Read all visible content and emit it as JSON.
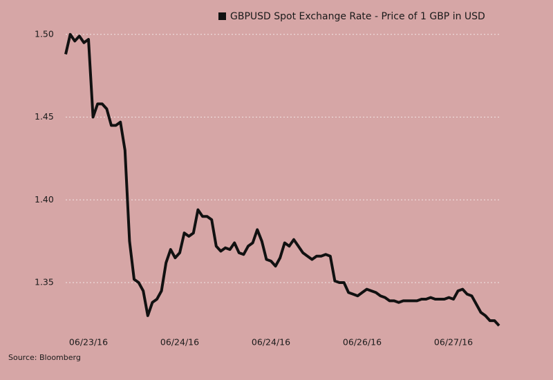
{
  "chart_data": {
    "type": "line",
    "source": "Source: Bloomberg",
    "categories": [
      null,
      null,
      null,
      null,
      null,
      "06/23/16",
      null,
      null,
      null,
      null,
      null,
      null,
      null,
      null,
      null,
      null,
      null,
      null,
      null,
      null,
      null,
      null,
      null,
      null,
      null,
      "06/24/16",
      null,
      null,
      null,
      null,
      null,
      null,
      null,
      null,
      null,
      null,
      null,
      null,
      null,
      null,
      null,
      null,
      null,
      null,
      null,
      "06/24/16",
      null,
      null,
      null,
      null,
      null,
      null,
      null,
      null,
      null,
      null,
      null,
      null,
      null,
      null,
      null,
      null,
      null,
      null,
      null,
      "06/26/16",
      null,
      null,
      null,
      null,
      null,
      null,
      null,
      null,
      null,
      null,
      null,
      null,
      null,
      null,
      null,
      null,
      null,
      null,
      null,
      "06/27/16",
      null,
      null,
      null,
      null,
      null,
      null,
      null,
      null,
      null,
      null
    ],
    "series": [
      {
        "name": "GBPUSD Spot Exchange Rate - Price of 1 GBP in USD",
        "color": "#111111",
        "values": [
          1.488,
          1.5,
          1.496,
          1.499,
          1.495,
          1.497,
          1.45,
          1.458,
          1.458,
          1.455,
          1.445,
          1.445,
          1.447,
          1.43,
          1.375,
          1.352,
          1.35,
          1.345,
          1.33,
          1.338,
          1.34,
          1.345,
          1.362,
          1.37,
          1.365,
          1.368,
          1.38,
          1.378,
          1.38,
          1.394,
          1.39,
          1.39,
          1.388,
          1.372,
          1.369,
          1.371,
          1.37,
          1.374,
          1.368,
          1.367,
          1.372,
          1.374,
          1.382,
          1.375,
          1.364,
          1.363,
          1.36,
          1.365,
          1.374,
          1.372,
          1.376,
          1.372,
          1.368,
          1.366,
          1.364,
          1.366,
          1.366,
          1.367,
          1.366,
          1.351,
          1.35,
          1.35,
          1.344,
          1.343,
          1.342,
          1.344,
          1.346,
          1.345,
          1.344,
          1.342,
          1.341,
          1.339,
          1.339,
          1.338,
          1.339,
          1.339,
          1.339,
          1.339,
          1.34,
          1.34,
          1.341,
          1.34,
          1.34,
          1.34,
          1.341,
          1.34,
          1.345,
          1.346,
          1.343,
          1.342,
          1.337,
          1.332,
          1.33,
          1.327,
          1.327,
          1.324
        ]
      }
    ],
    "ylim": [
      1.3237,
      1.502
    ],
    "yticks": [
      {
        "value": 1.5,
        "label": "1.50"
      },
      1.45,
      {
        "value": 1.4,
        "label": "1.40"
      },
      1.35
    ],
    "grid": true,
    "legend": "top"
  }
}
